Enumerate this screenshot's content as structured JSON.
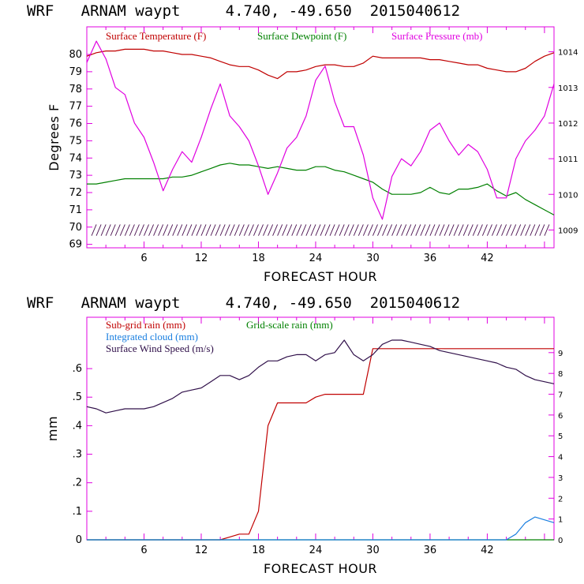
{
  "chart_data": [
    {
      "type": "line",
      "title": "WRF   ARNAM waypt     4.740, -49.650  2015040612",
      "xlabel": "FORECAST HOUR",
      "ylabel": "Degrees F",
      "xlim": [
        0,
        49
      ],
      "ylim": [
        68.8,
        81.6
      ],
      "y2lim": [
        1008.5,
        1014.7
      ],
      "xticks": [
        "6",
        "12",
        "18",
        "24",
        "30",
        "36",
        "42"
      ],
      "yticks": [
        "69",
        "70",
        "71",
        "72",
        "73",
        "74",
        "75",
        "76",
        "77",
        "78",
        "79",
        "80"
      ],
      "y2ticks": [
        "1009",
        "1010",
        "1011",
        "1012",
        "1013",
        "1014"
      ],
      "x": [
        0,
        1,
        2,
        3,
        4,
        5,
        6,
        7,
        8,
        9,
        10,
        11,
        12,
        13,
        14,
        15,
        16,
        17,
        18,
        19,
        20,
        21,
        22,
        23,
        24,
        25,
        26,
        27,
        28,
        29,
        30,
        31,
        32,
        33,
        34,
        35,
        36,
        37,
        38,
        39,
        40,
        41,
        42,
        43,
        44,
        45,
        46,
        47,
        48,
        49
      ],
      "series": [
        {
          "name": "Surface Temperature (F)",
          "color": "#c00000",
          "axis": "left",
          "values": [
            79.9,
            80.1,
            80.2,
            80.2,
            80.3,
            80.3,
            80.3,
            80.2,
            80.2,
            80.1,
            80.0,
            80.0,
            79.9,
            79.8,
            79.6,
            79.4,
            79.3,
            79.3,
            79.1,
            78.8,
            78.6,
            79.0,
            79.0,
            79.1,
            79.3,
            79.4,
            79.4,
            79.3,
            79.3,
            79.5,
            79.9,
            79.8,
            79.8,
            79.8,
            79.8,
            79.8,
            79.7,
            79.7,
            79.6,
            79.5,
            79.4,
            79.4,
            79.2,
            79.1,
            79.0,
            79.0,
            79.2,
            79.6,
            79.9,
            80.1
          ]
        },
        {
          "name": "Surface Dewpoint (F)",
          "color": "#008000",
          "axis": "left",
          "values": [
            72.5,
            72.5,
            72.6,
            72.7,
            72.8,
            72.8,
            72.8,
            72.8,
            72.8,
            72.9,
            72.9,
            73.0,
            73.2,
            73.4,
            73.6,
            73.7,
            73.6,
            73.6,
            73.5,
            73.4,
            73.5,
            73.4,
            73.3,
            73.3,
            73.5,
            73.5,
            73.3,
            73.2,
            73.0,
            72.8,
            72.6,
            72.2,
            71.9,
            71.9,
            71.9,
            72.0,
            72.3,
            72.0,
            71.9,
            72.2,
            72.2,
            72.3,
            72.5,
            72.1,
            71.8,
            72.0,
            71.6,
            71.3,
            71.0,
            70.7
          ]
        },
        {
          "name": "Surface Pressure (mb)",
          "color": "#e000e0",
          "axis": "right",
          "values": [
            1013.7,
            1014.3,
            1013.8,
            1013.0,
            1012.8,
            1012.0,
            1011.6,
            1010.9,
            1010.1,
            1010.7,
            1011.2,
            1010.9,
            1011.6,
            1012.4,
            1013.1,
            1012.2,
            1011.9,
            1011.5,
            1010.8,
            1010.0,
            1010.6,
            1011.3,
            1011.6,
            1012.2,
            1013.2,
            1013.6,
            1012.6,
            1011.9,
            1011.9,
            1011.1,
            1009.9,
            1009.3,
            1010.5,
            1011.0,
            1010.8,
            1011.2,
            1011.8,
            1012.0,
            1011.5,
            1011.1,
            1011.4,
            1011.2,
            1010.7,
            1009.9,
            1009.9,
            1011.0,
            1011.5,
            1011.8,
            1012.2,
            1013.1
          ]
        }
      ]
    },
    {
      "type": "line",
      "title": "WRF   ARNAM waypt     4.740, -49.650  2015040612",
      "xlabel": "FORECAST HOUR",
      "ylabel": "mm",
      "xlim": [
        0,
        49
      ],
      "ylim": [
        0,
        0.78
      ],
      "y2lim": [
        0,
        10.7
      ],
      "xticks": [
        "6",
        "12",
        "18",
        "24",
        "30",
        "36",
        "42"
      ],
      "yticks": [
        "0",
        ".1",
        ".2",
        ".3",
        ".4",
        ".5",
        ".6"
      ],
      "y2ticks": [
        "0",
        "1",
        "2",
        "3",
        "4",
        "5",
        "6",
        "7",
        "8",
        "9"
      ],
      "x": [
        0,
        1,
        2,
        3,
        4,
        5,
        6,
        7,
        8,
        9,
        10,
        11,
        12,
        13,
        14,
        15,
        16,
        17,
        18,
        19,
        20,
        21,
        22,
        23,
        24,
        25,
        26,
        27,
        28,
        29,
        30,
        31,
        32,
        33,
        34,
        35,
        36,
        37,
        38,
        39,
        40,
        41,
        42,
        43,
        44,
        45,
        46,
        47,
        48,
        49
      ],
      "series": [
        {
          "name": "Sub-grid rain (mm)",
          "color": "#c00000",
          "axis": "left",
          "values": [
            0,
            0,
            0,
            0,
            0,
            0,
            0,
            0,
            0,
            0,
            0,
            0,
            0,
            0,
            0,
            0.01,
            0.02,
            0.02,
            0.1,
            0.4,
            0.48,
            0.48,
            0.48,
            0.48,
            0.5,
            0.51,
            0.51,
            0.51,
            0.51,
            0.51,
            0.67,
            0.67,
            0.67,
            0.67,
            0.67,
            0.67,
            0.67,
            0.67,
            0.67,
            0.67,
            0.67,
            0.67,
            0.67,
            0.67,
            0.67,
            0.67,
            0.67,
            0.67,
            0.67,
            0.67
          ]
        },
        {
          "name": "Grid-scale rain (mm)",
          "color": "#008000",
          "axis": "left",
          "values": [
            0,
            0,
            0,
            0,
            0,
            0,
            0,
            0,
            0,
            0,
            0,
            0,
            0,
            0,
            0,
            0,
            0,
            0,
            0,
            0,
            0,
            0,
            0,
            0,
            0,
            0,
            0,
            0,
            0,
            0,
            0,
            0,
            0,
            0,
            0,
            0,
            0,
            0,
            0,
            0,
            0,
            0,
            0,
            0,
            0,
            0,
            0,
            0,
            0,
            0
          ]
        },
        {
          "name": "Integrated cloud (mm)",
          "color": "#1a7fe0",
          "axis": "left",
          "values": [
            0,
            0,
            0,
            0,
            0,
            0,
            0,
            0,
            0,
            0,
            0,
            0,
            0,
            0,
            0,
            0,
            0,
            0,
            0,
            0,
            0,
            0,
            0,
            0,
            0,
            0,
            0,
            0,
            0,
            0,
            0,
            0,
            0,
            0,
            0,
            0,
            0,
            0,
            0,
            0,
            0,
            0,
            0,
            0,
            0,
            0.02,
            0.06,
            0.08,
            0.07,
            0.06
          ]
        },
        {
          "name": "Surface Wind Speed (m/s)",
          "color": "#30104a",
          "axis": "right",
          "values": [
            6.4,
            6.3,
            6.1,
            6.2,
            6.3,
            6.3,
            6.3,
            6.4,
            6.6,
            6.8,
            7.1,
            7.2,
            7.3,
            7.6,
            7.9,
            7.9,
            7.7,
            7.9,
            8.3,
            8.6,
            8.6,
            8.8,
            8.9,
            8.9,
            8.6,
            8.9,
            9.0,
            9.6,
            8.9,
            8.6,
            8.9,
            9.4,
            9.6,
            9.6,
            9.5,
            9.4,
            9.3,
            9.1,
            9.0,
            8.9,
            8.8,
            8.7,
            8.6,
            8.5,
            8.3,
            8.2,
            7.9,
            7.7,
            7.6,
            7.5
          ]
        }
      ]
    }
  ],
  "colors": {
    "axis": "#e000e0",
    "frame": "#e000e0",
    "text": "#000000"
  }
}
